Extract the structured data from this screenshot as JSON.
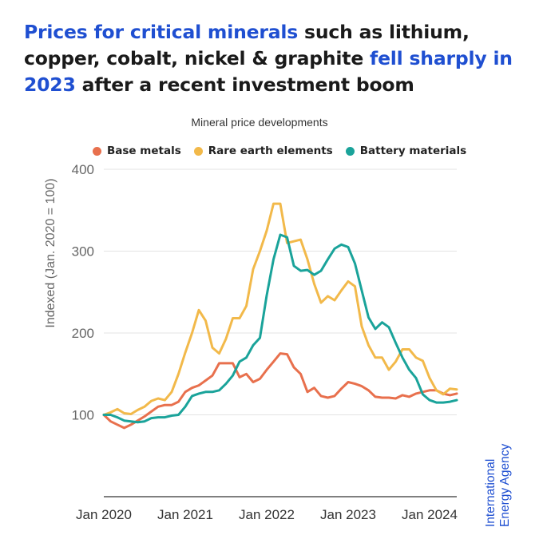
{
  "headline": {
    "part1": "Prices for critical minerals",
    "part2": " such as lithium, copper, cobalt, nickel & graphite ",
    "part3": "fell sharply in 2023",
    "part4": " after a recent investment boom"
  },
  "brand": {
    "line1": "International",
    "line2": "Energy Agency"
  },
  "colors": {
    "highlight": "#1f4fd1",
    "base_metals": "#e8704d",
    "rare_earth": "#f2b94a",
    "battery": "#1aa39a",
    "grid": "#e3e3e3",
    "axis_text": "#666666"
  },
  "chart_data": {
    "type": "line",
    "title": "Mineral price developments",
    "xlabel": "",
    "ylabel": "Indexed (Jan. 2020 = 100)",
    "ylim": [
      0,
      400
    ],
    "xlim": [
      0,
      52
    ],
    "yticks": [
      100,
      200,
      300,
      400
    ],
    "xticks": [
      {
        "x": 0,
        "label": "Jan 2020"
      },
      {
        "x": 12,
        "label": "Jan 2021"
      },
      {
        "x": 24,
        "label": "Jan 2022"
      },
      {
        "x": 36,
        "label": "Jan 2023"
      },
      {
        "x": 48,
        "label": "Jan 2024"
      }
    ],
    "x": [
      0,
      1,
      2,
      3,
      4,
      5,
      6,
      7,
      8,
      9,
      10,
      11,
      12,
      13,
      14,
      15,
      16,
      17,
      18,
      19,
      20,
      21,
      22,
      23,
      24,
      25,
      26,
      27,
      28,
      29,
      30,
      31,
      32,
      33,
      34,
      35,
      36,
      37,
      38,
      39,
      40,
      41,
      42,
      43,
      44,
      45,
      46,
      47,
      48,
      49,
      50,
      51,
      52
    ],
    "series": [
      {
        "name": "Base metals",
        "color": "#e8704d",
        "values": [
          100,
          92,
          88,
          84,
          88,
          93,
          98,
          104,
          110,
          112,
          112,
          116,
          128,
          133,
          136,
          142,
          148,
          163,
          163,
          163,
          146,
          150,
          140,
          144,
          155,
          165,
          175,
          174,
          158,
          150,
          128,
          133,
          123,
          121,
          123,
          132,
          140,
          138,
          135,
          130,
          122,
          121,
          121,
          120,
          124,
          122,
          126,
          128,
          130,
          130,
          126,
          124,
          126
        ]
      },
      {
        "name": "Rare earth elements",
        "color": "#f2b94a",
        "values": [
          100,
          103,
          107,
          102,
          101,
          106,
          110,
          117,
          120,
          118,
          128,
          150,
          176,
          200,
          228,
          215,
          182,
          175,
          193,
          218,
          218,
          233,
          278,
          300,
          325,
          358,
          358,
          310,
          312,
          314,
          290,
          260,
          237,
          245,
          240,
          252,
          263,
          257,
          208,
          185,
          170,
          170,
          155,
          165,
          180,
          180,
          170,
          166,
          145,
          130,
          125,
          132,
          131
        ]
      },
      {
        "name": "Battery materials",
        "color": "#1aa39a",
        "values": [
          100,
          100,
          97,
          93,
          92,
          91,
          92,
          96,
          97,
          97,
          99,
          100,
          110,
          123,
          126,
          128,
          128,
          130,
          138,
          148,
          165,
          170,
          185,
          194,
          246,
          290,
          320,
          317,
          282,
          276,
          277,
          271,
          276,
          290,
          303,
          308,
          305,
          285,
          252,
          219,
          205,
          213,
          207,
          188,
          170,
          155,
          145,
          125,
          118,
          115,
          115,
          116,
          118
        ]
      }
    ]
  }
}
